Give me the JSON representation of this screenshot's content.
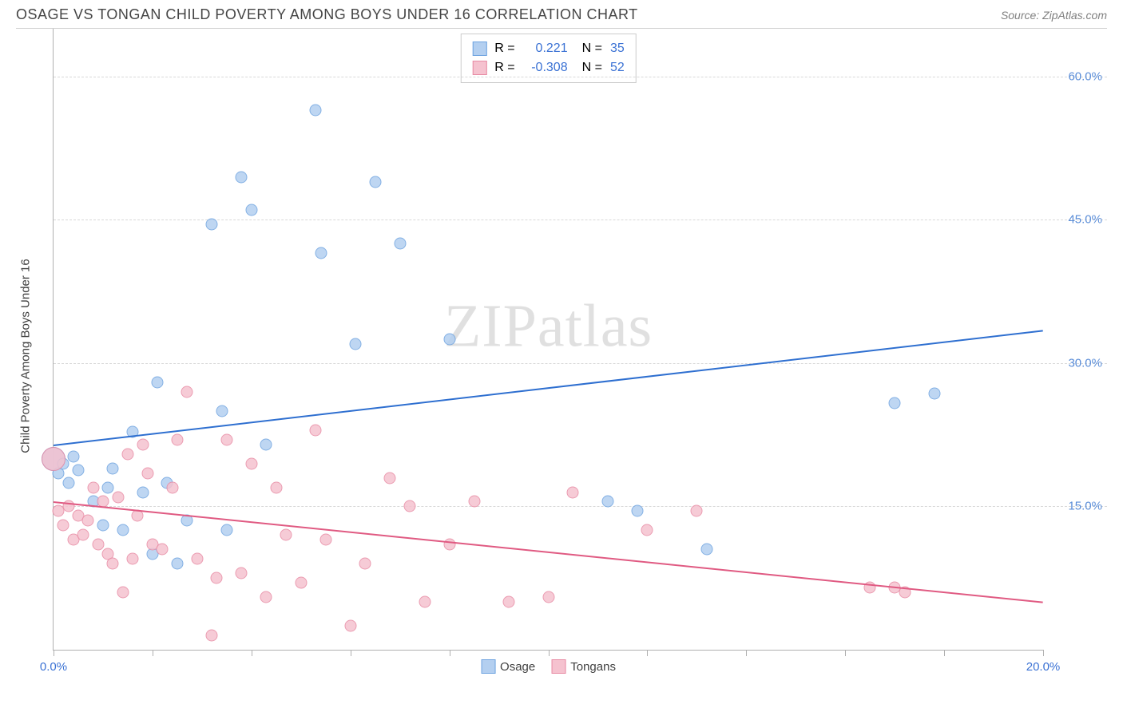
{
  "title": "OSAGE VS TONGAN CHILD POVERTY AMONG BOYS UNDER 16 CORRELATION CHART",
  "source": "Source: ZipAtlas.com",
  "y_axis_label": "Child Poverty Among Boys Under 16",
  "watermark": "ZIPatlas",
  "chart": {
    "type": "scatter",
    "xlim": [
      0,
      20
    ],
    "ylim": [
      0,
      65
    ],
    "x_ticks": [
      0,
      2,
      4,
      6,
      8,
      10,
      12,
      14,
      16,
      18,
      20
    ],
    "x_tick_labels": {
      "0": "0.0%",
      "20": "20.0%"
    },
    "y_gridlines": [
      15,
      30,
      45,
      60
    ],
    "y_tick_labels": {
      "15": "15.0%",
      "30": "30.0%",
      "45": "45.0%",
      "60": "60.0%"
    },
    "background_color": "#ffffff",
    "grid_color": "#d8d8d8",
    "x_label_color": "#3b72d4",
    "y_label_color": "#5a8dd8"
  },
  "series": {
    "osage": {
      "label": "Osage",
      "r_label": "R =",
      "r_value": "0.221",
      "n_label": "N =",
      "n_value": "35",
      "fill_color": "#b3cff0",
      "stroke_color": "#6ea3e0",
      "line_color": "#2e6fd0",
      "marker_size": 15,
      "trend": {
        "x1": 0,
        "y1": 21.5,
        "x2": 20,
        "y2": 33.5
      },
      "points": [
        [
          0.0,
          20.0,
          30
        ],
        [
          0.1,
          18.5,
          15
        ],
        [
          0.2,
          19.5,
          15
        ],
        [
          0.3,
          17.5,
          15
        ],
        [
          0.4,
          20.2,
          15
        ],
        [
          0.5,
          18.8,
          15
        ],
        [
          0.8,
          15.5,
          15
        ],
        [
          1.0,
          13.0,
          15
        ],
        [
          1.1,
          17.0,
          15
        ],
        [
          1.2,
          19.0,
          15
        ],
        [
          1.4,
          12.5,
          15
        ],
        [
          1.6,
          22.8,
          15
        ],
        [
          1.8,
          16.5,
          15
        ],
        [
          2.0,
          10.0,
          15
        ],
        [
          2.1,
          28.0,
          15
        ],
        [
          2.3,
          17.5,
          15
        ],
        [
          2.5,
          9.0,
          15
        ],
        [
          2.7,
          13.5,
          15
        ],
        [
          3.2,
          44.5,
          15
        ],
        [
          3.4,
          25.0,
          15
        ],
        [
          3.5,
          12.5,
          15
        ],
        [
          3.8,
          49.5,
          15
        ],
        [
          4.0,
          46.0,
          15
        ],
        [
          4.3,
          21.5,
          15
        ],
        [
          5.3,
          56.5,
          15
        ],
        [
          5.4,
          41.5,
          15
        ],
        [
          6.1,
          32.0,
          15
        ],
        [
          6.5,
          49.0,
          15
        ],
        [
          7.0,
          42.5,
          15
        ],
        [
          8.0,
          32.5,
          15
        ],
        [
          11.2,
          15.5,
          15
        ],
        [
          11.8,
          14.5,
          15
        ],
        [
          13.2,
          10.5,
          15
        ],
        [
          17.0,
          25.8,
          15
        ],
        [
          17.8,
          26.8,
          15
        ]
      ]
    },
    "tongans": {
      "label": "Tongans",
      "r_label": "R =",
      "r_value": "-0.308",
      "n_label": "N =",
      "n_value": "52",
      "fill_color": "#f5c2cf",
      "stroke_color": "#e88ba4",
      "line_color": "#e05a82",
      "marker_size": 15,
      "trend": {
        "x1": 0,
        "y1": 15.5,
        "x2": 20,
        "y2": 5.0
      },
      "points": [
        [
          0.0,
          20.0,
          30
        ],
        [
          0.1,
          14.5,
          15
        ],
        [
          0.2,
          13.0,
          15
        ],
        [
          0.3,
          15.0,
          15
        ],
        [
          0.4,
          11.5,
          15
        ],
        [
          0.5,
          14.0,
          15
        ],
        [
          0.6,
          12.0,
          15
        ],
        [
          0.7,
          13.5,
          15
        ],
        [
          0.8,
          17.0,
          15
        ],
        [
          0.9,
          11.0,
          15
        ],
        [
          1.0,
          15.5,
          15
        ],
        [
          1.1,
          10.0,
          15
        ],
        [
          1.2,
          9.0,
          15
        ],
        [
          1.3,
          16.0,
          15
        ],
        [
          1.4,
          6.0,
          15
        ],
        [
          1.5,
          20.5,
          15
        ],
        [
          1.6,
          9.5,
          15
        ],
        [
          1.7,
          14.0,
          15
        ],
        [
          1.8,
          21.5,
          15
        ],
        [
          1.9,
          18.5,
          15
        ],
        [
          2.0,
          11.0,
          15
        ],
        [
          2.2,
          10.5,
          15
        ],
        [
          2.4,
          17.0,
          15
        ],
        [
          2.5,
          22.0,
          15
        ],
        [
          2.7,
          27.0,
          15
        ],
        [
          2.9,
          9.5,
          15
        ],
        [
          3.2,
          1.5,
          15
        ],
        [
          3.3,
          7.5,
          15
        ],
        [
          3.5,
          22.0,
          15
        ],
        [
          3.8,
          8.0,
          15
        ],
        [
          4.0,
          19.5,
          15
        ],
        [
          4.3,
          5.5,
          15
        ],
        [
          4.5,
          17.0,
          15
        ],
        [
          4.7,
          12.0,
          15
        ],
        [
          5.0,
          7.0,
          15
        ],
        [
          5.3,
          23.0,
          15
        ],
        [
          5.5,
          11.5,
          15
        ],
        [
          6.0,
          2.5,
          15
        ],
        [
          6.3,
          9.0,
          15
        ],
        [
          6.8,
          18.0,
          15
        ],
        [
          7.2,
          15.0,
          15
        ],
        [
          7.5,
          5.0,
          15
        ],
        [
          8.0,
          11.0,
          15
        ],
        [
          8.5,
          15.5,
          15
        ],
        [
          9.2,
          5.0,
          15
        ],
        [
          10.0,
          5.5,
          15
        ],
        [
          10.5,
          16.5,
          15
        ],
        [
          12.0,
          12.5,
          15
        ],
        [
          13.0,
          14.5,
          15
        ],
        [
          16.5,
          6.5,
          15
        ],
        [
          17.0,
          6.5,
          15
        ],
        [
          17.2,
          6.0,
          15
        ]
      ]
    }
  }
}
